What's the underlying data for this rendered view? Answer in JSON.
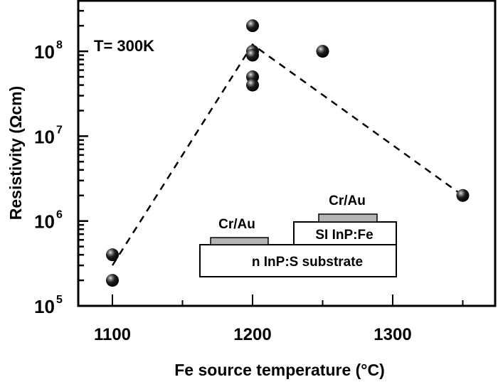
{
  "chart_data": {
    "type": "scatter",
    "title": "",
    "annotation": "T= 300K",
    "xlabel": "Fe source temperature (°C)",
    "ylabel": "Resistivity (Ωcm)",
    "xlim": [
      1072,
      1370
    ],
    "ylim": [
      100000,
      500000000
    ],
    "yscale": "log",
    "x_ticks": [
      1100,
      1200,
      1300
    ],
    "x_tick_labels": [
      "1100",
      "1200",
      "1300"
    ],
    "y_ticks": [
      100000,
      1000000,
      10000000,
      100000000
    ],
    "y_tick_labels": [
      {
        "base": "10",
        "exp": "5"
      },
      {
        "base": "10",
        "exp": "6"
      },
      {
        "base": "10",
        "exp": "7"
      },
      {
        "base": "10",
        "exp": "8"
      }
    ],
    "grid": false,
    "legend": null,
    "series": [
      {
        "name": "measured",
        "marker": "sphere",
        "points": [
          {
            "x": 1100,
            "y": 400000
          },
          {
            "x": 1100,
            "y": 200000
          },
          {
            "x": 1200,
            "y": 200000000
          },
          {
            "x": 1200,
            "y": 100000000
          },
          {
            "x": 1200,
            "y": 90000000
          },
          {
            "x": 1200,
            "y": 50000000
          },
          {
            "x": 1200,
            "y": 40000000
          },
          {
            "x": 1250,
            "y": 100000000
          },
          {
            "x": 1350,
            "y": 2000000
          }
        ]
      },
      {
        "name": "trend",
        "style": "dashed",
        "points": [
          {
            "x": 1100,
            "y": 300000
          },
          {
            "x": 1200,
            "y": 120000000
          },
          {
            "x": 1350,
            "y": 2000000
          }
        ]
      }
    ],
    "inset": {
      "contact_left": "Cr/Au",
      "contact_right": "Cr/Au",
      "layer_top": "SI InP:Fe",
      "substrate": "n InP:S substrate"
    }
  },
  "colors": {
    "axis": "#000000",
    "marker": "#111111",
    "contact": "#b4b4b4",
    "background": "#ffffff"
  }
}
